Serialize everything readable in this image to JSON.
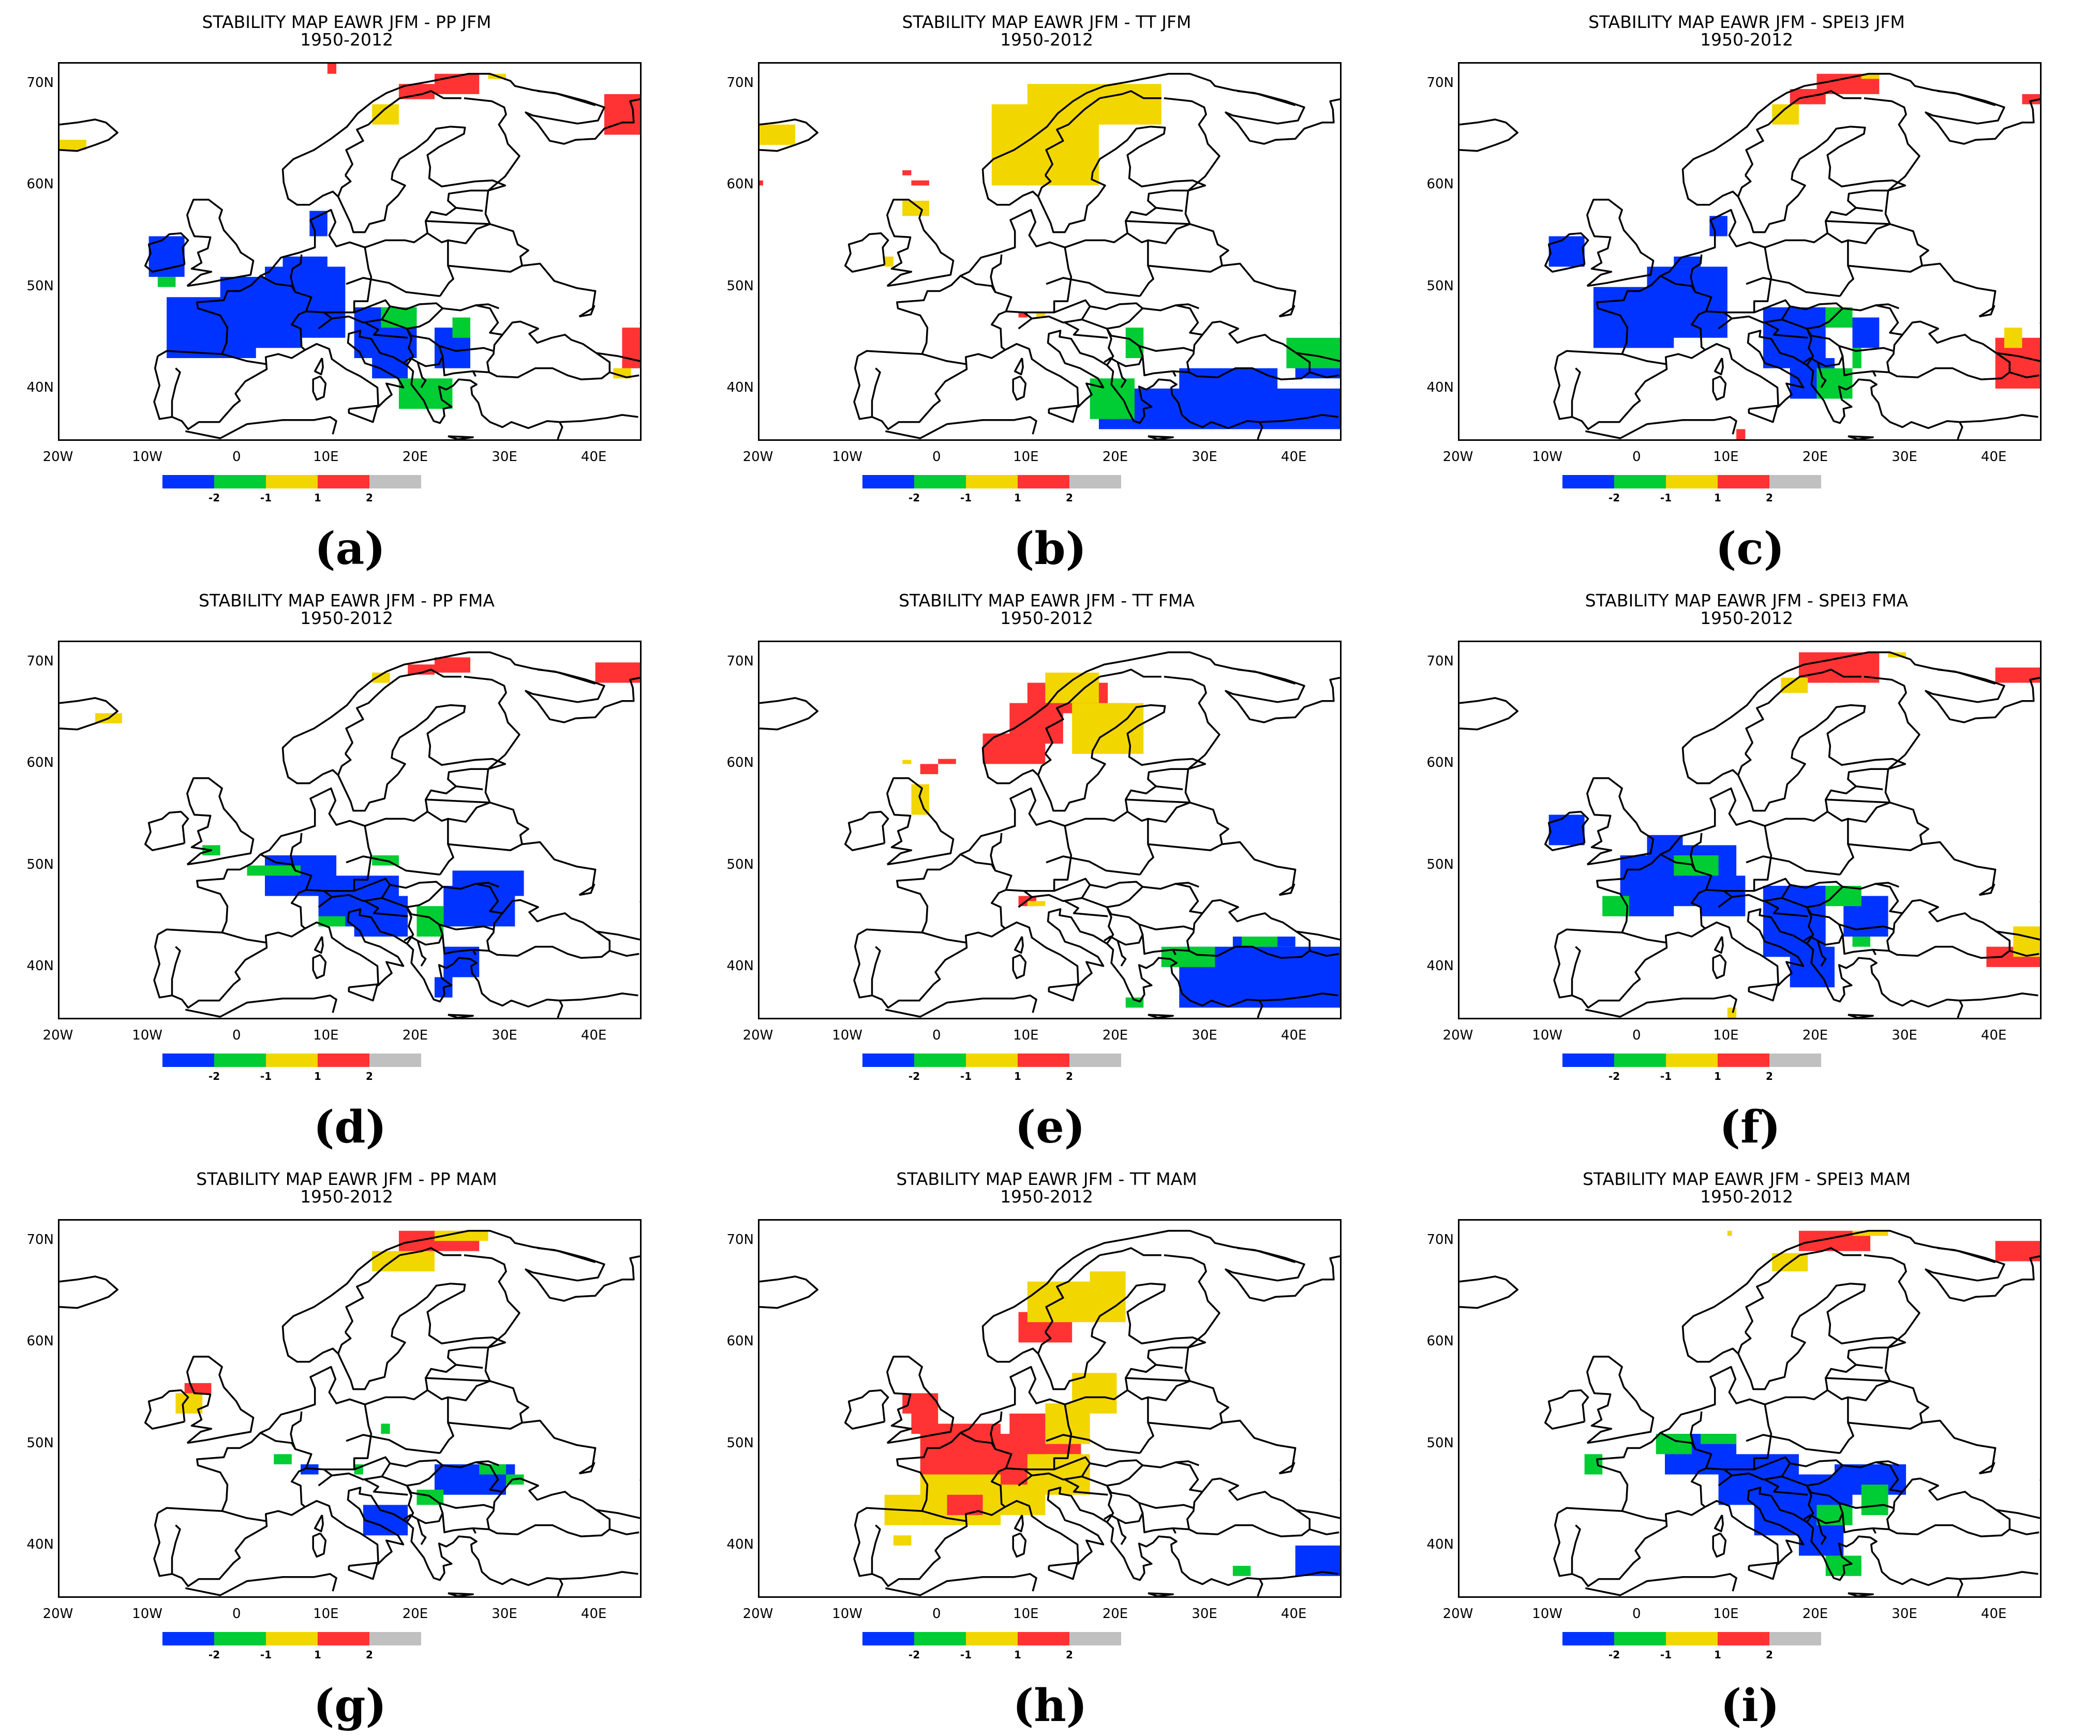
{
  "title_line2": "1950-2012",
  "legend": {
    "colors": [
      "#0033ff",
      "#00cc33",
      "#f2d600",
      "#ff3333",
      "#c0c0c0"
    ],
    "labels": [
      "-2",
      "-1",
      "1",
      "2"
    ]
  },
  "axes": {
    "lat_labels": [
      "70N",
      "60N",
      "50N",
      "40N"
    ],
    "lon_labels": [
      "20W",
      "10W",
      "0",
      "10E",
      "20E",
      "30E",
      "40E"
    ]
  },
  "panels": [
    {
      "letter": "(a)",
      "title": "STABILITY MAP EAWR JFM - PP JFM",
      "pattern": "pp_jfm"
    },
    {
      "letter": "(b)",
      "title": "STABILITY MAP EAWR JFM - TT JFM",
      "pattern": "tt_jfm"
    },
    {
      "letter": "(c)",
      "title": "STABILITY MAP EAWR JFM - SPEI3 JFM",
      "pattern": "spei_jfm"
    },
    {
      "letter": "(d)",
      "title": "STABILITY MAP EAWR JFM - PP FMA",
      "pattern": "pp_fma"
    },
    {
      "letter": "(e)",
      "title": "STABILITY MAP EAWR JFM - TT FMA",
      "pattern": "tt_fma"
    },
    {
      "letter": "(f)",
      "title": "STABILITY MAP EAWR JFM - SPEI3 FMA",
      "pattern": "spei_fma"
    },
    {
      "letter": "(g)",
      "title": "STABILITY MAP EAWR JFM - PP MAM",
      "pattern": "pp_mam"
    },
    {
      "letter": "(h)",
      "title": "STABILITY MAP EAWR JFM - TT MAM",
      "pattern": "tt_mam"
    },
    {
      "letter": "(i)",
      "title": "STABILITY MAP EAWR JFM - SPEI3 MAM",
      "pattern": "spei_mam"
    }
  ]
}
